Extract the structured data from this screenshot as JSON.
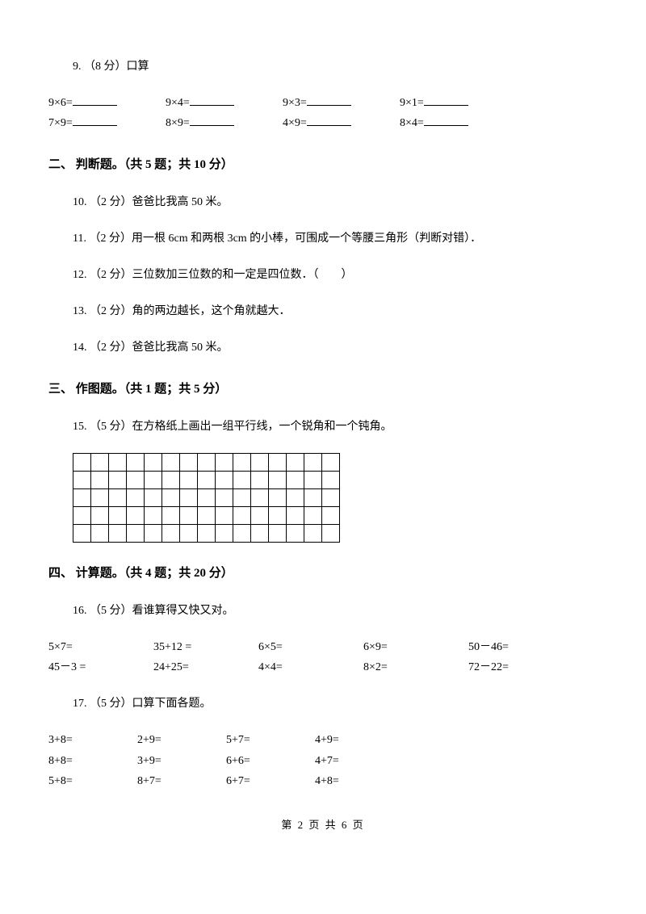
{
  "q9": {
    "title": "9. （8 分）口算",
    "row1": [
      "9×6=",
      "9×4=",
      "9×3=",
      "9×1="
    ],
    "row2": [
      "7×9=",
      "8×9=",
      "4×9=",
      "8×4="
    ]
  },
  "sec2": "二、 判断题。（共 5 题；共 10 分）",
  "q10": "10. （2 分）爸爸比我高 50 米。",
  "q11": "11. （2 分）用一根 6cm 和两根 3cm 的小棒，可围成一个等腰三角形（判断对错）．",
  "q12": "12. （2 分）三位数加三位数的和一定是四位数．（　　）",
  "q13": "13. （2 分）角的两边越长，这个角就越大．",
  "q14": "14. （2 分）爸爸比我高 50 米。",
  "sec3": "三、 作图题。（共 1 题；共 5 分）",
  "q15": "15. （5 分）在方格纸上画出一组平行线，一个锐角和一个钝角。",
  "sec4": "四、 计算题。（共 4 题；共 20 分）",
  "q16": {
    "title": "16. （5 分）看谁算得又快又对。",
    "row1": [
      "5×7=",
      "35+12 =",
      "6×5=",
      "6×9=",
      "50－46="
    ],
    "row2": [
      "45－3 =",
      "24+25=",
      "4×4=",
      "8×2=",
      "72－22="
    ]
  },
  "q17": {
    "title": "17. （5 分）口算下面各题。",
    "row1": [
      "3+8=",
      "2+9=",
      "5+7=",
      "4+9="
    ],
    "row2": [
      "8+8=",
      "3+9=",
      "6+6=",
      "4+7="
    ],
    "row3": [
      "5+8=",
      "8+7=",
      "6+7=",
      "4+8="
    ]
  },
  "footer": "第 2 页 共 6 页",
  "grid": {
    "rows": 5,
    "cols": 15
  }
}
